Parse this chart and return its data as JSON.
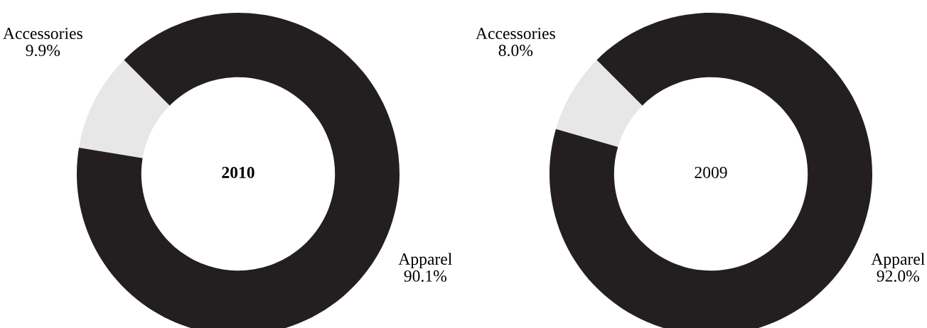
{
  "chart_data": [
    {
      "type": "donut",
      "title": "2010",
      "categories": [
        "Accessories",
        "Apparel"
      ],
      "values": [
        9.9,
        90.1
      ],
      "value_labels": [
        "9.9%",
        "90.1%"
      ],
      "colors": [
        "#e6e7e6",
        "#231f20"
      ]
    },
    {
      "type": "donut",
      "title": "2009",
      "categories": [
        "Accessories",
        "Apparel"
      ],
      "values": [
        8.0,
        92.0
      ],
      "value_labels": [
        "8.0%",
        "92.0%"
      ],
      "colors": [
        "#e6e7e6",
        "#231f20"
      ]
    }
  ]
}
